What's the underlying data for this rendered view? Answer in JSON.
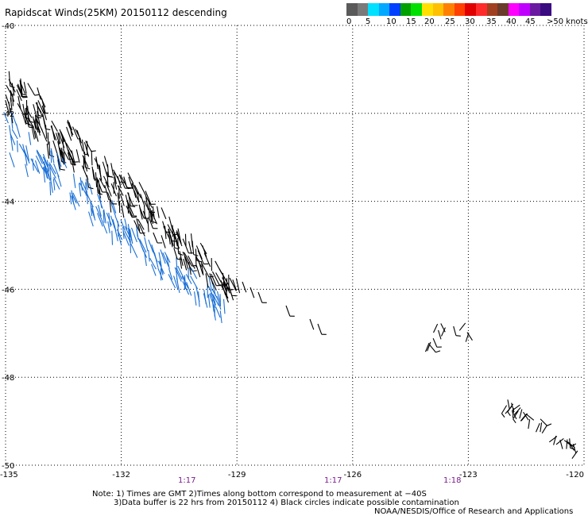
{
  "title": "Rapidscat Winds(25KM) 20150112 descending",
  "legend": {
    "colors": [
      "#5a5a5a",
      "#7a7a7a",
      "#00e0ff",
      "#00a8ff",
      "#0040ff",
      "#00a000",
      "#00e000",
      "#ffe000",
      "#ffc000",
      "#ff8000",
      "#ff4000",
      "#e00000",
      "#ff2a2a",
      "#a04020",
      "#6a3a2a",
      "#ff00ff",
      "#c000ff",
      "#6a1aa0",
      "#3a0a80"
    ],
    "labels": [
      "0",
      "5",
      "10",
      "15",
      "20",
      "25",
      "30",
      "35",
      "40",
      "45",
      ">50 knots"
    ]
  },
  "map": {
    "lon_ticks": [
      "-135",
      "-132",
      "-129",
      "-126",
      "-123",
      "-120"
    ],
    "lat_ticks": [
      "-40",
      "-42",
      "-44",
      "-46",
      "-48",
      "-50"
    ],
    "lon_range": [
      -135,
      -120
    ],
    "lat_range": [
      -40,
      -50
    ],
    "grid": "dotted"
  },
  "times": [
    "1:17",
    "1:17",
    "1:18"
  ],
  "notes": {
    "line1": "Note: 1) Times are GMT 2)Times along bottom correspond to measurement at −40S",
    "line2": "3)Data buffer is 22 hrs from 20150112 4) Black circles indicate possible contamination",
    "credit": "NOAA/NESDIS/Office of Research and Applications"
  },
  "wind_colors": {
    "low": "#1a6fd6",
    "mid": "#000000"
  }
}
